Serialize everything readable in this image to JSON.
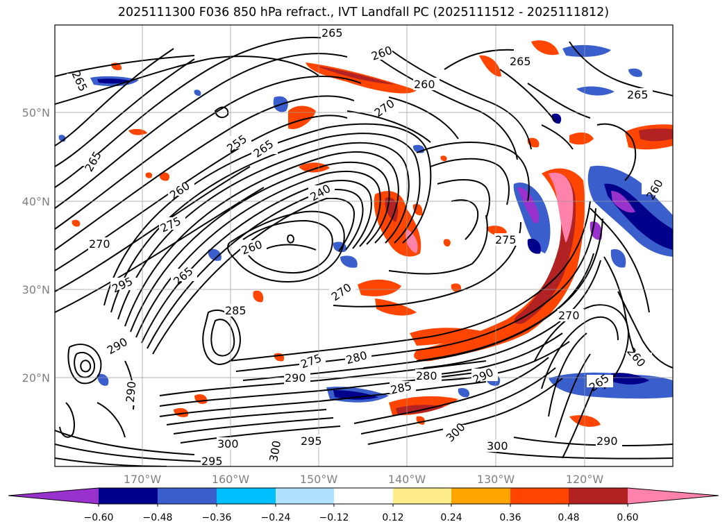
{
  "title": "2025111300 F036 850 hPa refract., IVT Landfall PC (2025111512 - 2025111812)",
  "lat_labels": [
    "50°N",
    "40°N",
    "30°N",
    "20°N"
  ],
  "lon_labels": [
    "170°W",
    "160°W",
    "150°W",
    "140°W",
    "130°W",
    "120°W"
  ],
  "contour_labels": [
    "265",
    "260",
    "265",
    "265",
    "260",
    "265",
    "270",
    "255",
    "265",
    "265",
    "260",
    "275",
    "270",
    "240",
    "260",
    "265",
    "270",
    "285",
    "295",
    "290",
    "290",
    "275",
    "280",
    "285",
    "290",
    "280",
    "290",
    "295",
    "300",
    "300",
    "295",
    "300",
    "290",
    "300",
    "275",
    "260",
    "265",
    "270",
    "260"
  ],
  "colorbar": {
    "colors": [
      "#9932cc",
      "#00008b",
      "#3a5fcd",
      "#00bfff",
      "#b0e2ff",
      "#ffffff",
      "#ffec8b",
      "#ffa500",
      "#ff4500",
      "#b22222",
      "#ff82ab"
    ],
    "ticks": [
      "−0.60",
      "−0.48",
      "−0.36",
      "−0.24",
      "−0.12",
      "0.12",
      "0.24",
      "0.36",
      "0.48",
      "0.60"
    ]
  }
}
